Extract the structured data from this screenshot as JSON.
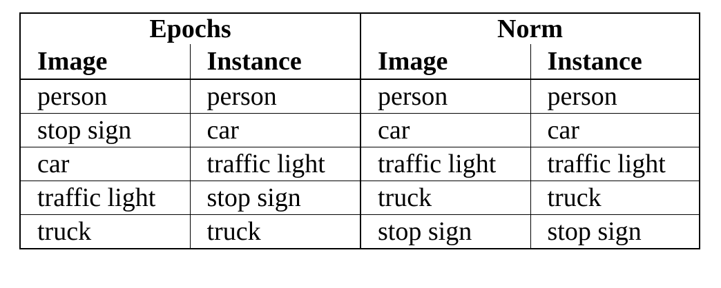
{
  "table": {
    "groups": [
      "Epochs",
      "Norm"
    ],
    "columns": [
      "Image",
      "Instance",
      "Image",
      "Instance"
    ],
    "rows": [
      [
        "person",
        "person",
        "person",
        "person"
      ],
      [
        "stop sign",
        "car",
        "car",
        "car"
      ],
      [
        "car",
        "traffic light",
        "traffic light",
        "traffic light"
      ],
      [
        "traffic light",
        "stop sign",
        "truck",
        "truck"
      ],
      [
        "truck",
        "truck",
        "stop sign",
        "stop sign"
      ]
    ]
  }
}
